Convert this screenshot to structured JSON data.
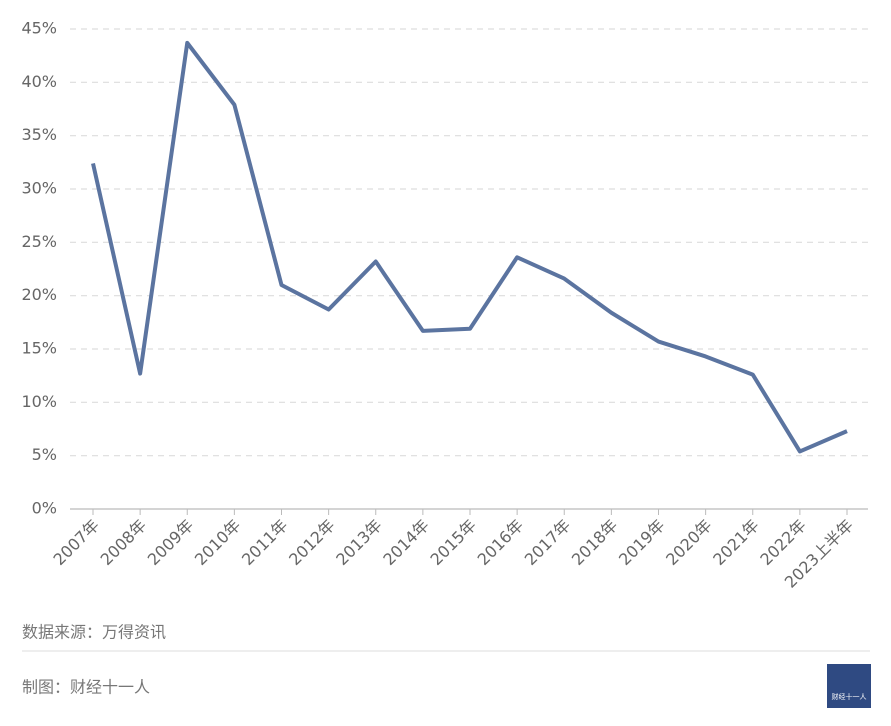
{
  "chart_data": {
    "type": "line",
    "categories": [
      "2007年",
      "2008年",
      "2009年",
      "2010年",
      "2011年",
      "2012年",
      "2013年",
      "2014年",
      "2015年",
      "2016年",
      "2017年",
      "2018年",
      "2019年",
      "2020年",
      "2021年",
      "2022年",
      "2023上半年"
    ],
    "values": [
      32.4,
      12.7,
      43.7,
      37.9,
      21.0,
      18.7,
      23.2,
      16.7,
      16.9,
      23.6,
      21.6,
      18.4,
      15.7,
      14.3,
      12.6,
      5.4,
      7.3
    ],
    "color": "#5b74a0",
    "ylim": [
      0,
      45
    ],
    "yticks": [
      {
        "value": 0,
        "label": "0%"
      },
      {
        "value": 5,
        "label": "5%"
      },
      {
        "value": 10,
        "label": "10%"
      },
      {
        "value": 15,
        "label": "15%"
      },
      {
        "value": 20,
        "label": "20%"
      },
      {
        "value": 25,
        "label": "25%"
      },
      {
        "value": 30,
        "label": "30%"
      },
      {
        "value": 35,
        "label": "35%"
      },
      {
        "value": 40,
        "label": "40%"
      },
      {
        "value": 45,
        "label": "45%"
      }
    ],
    "grid": true
  },
  "footer": {
    "source": "数据来源：万得资讯",
    "credit": "制图：财经十一人",
    "logo": "财经十一人"
  }
}
